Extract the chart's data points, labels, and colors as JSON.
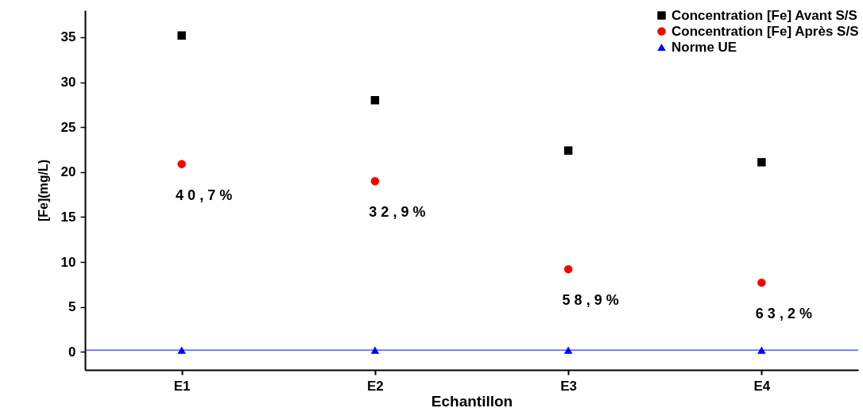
{
  "chart_data": {
    "type": "scatter",
    "xlabel": "Echantillon",
    "ylabel": "[Fe](mg/L)",
    "categories": [
      "E1",
      "E2",
      "E3",
      "E4"
    ],
    "series": [
      {
        "name": "Concentration [Fe] Avant S/S",
        "color": "#000000",
        "marker": "square",
        "values": [
          35.2,
          28.0,
          22.4,
          21.1
        ]
      },
      {
        "name": "Concentration [Fe] Après S/S",
        "color": "#ff0000",
        "marker": "circle",
        "values": [
          20.9,
          19.0,
          9.2,
          7.7
        ]
      },
      {
        "name": "Norme UE",
        "color": "#0000ff",
        "marker": "triangle",
        "values": [
          0.2,
          0.2,
          0.2,
          0.2
        ]
      }
    ],
    "ylim": [
      -2,
      38
    ],
    "yticks": [
      0,
      5,
      10,
      15,
      20,
      25,
      30,
      35
    ],
    "ref_lines": [
      {
        "axis": "y",
        "value": 0.2,
        "color": "#0000ff"
      }
    ],
    "annotations": [
      "4 0 , 7 %",
      "3 2 , 9 %",
      "5 8 , 9 %",
      "6 3 , 2 %"
    ],
    "legend": "top right",
    "grid": false
  }
}
